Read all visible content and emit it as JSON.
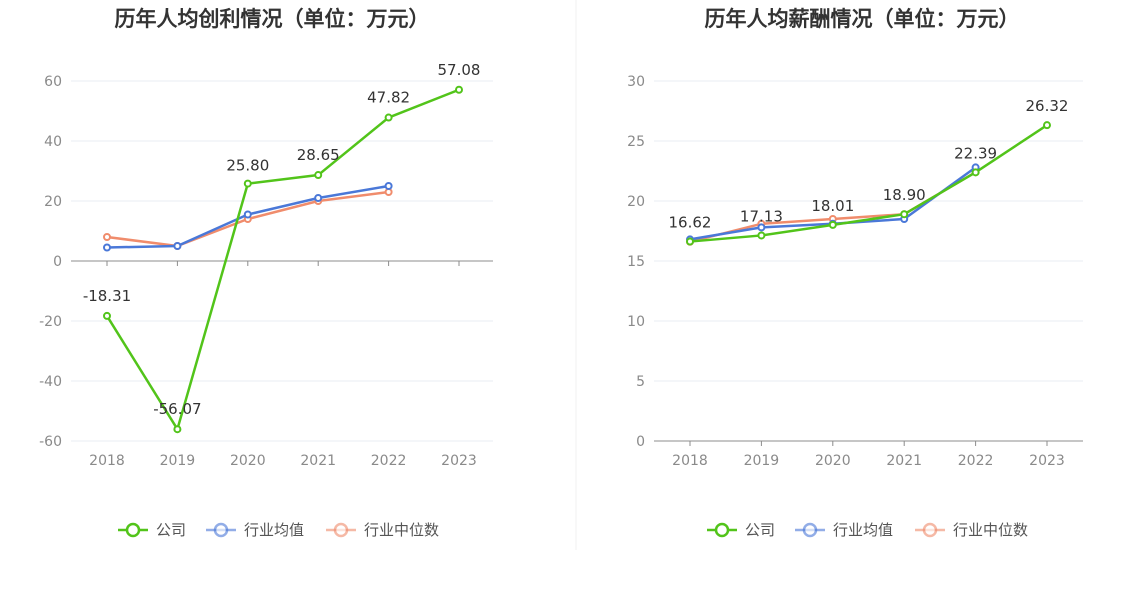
{
  "chart_data": [
    {
      "type": "line",
      "title": "历年人均创利情况（单位：万元）",
      "categories": [
        "2018",
        "2019",
        "2020",
        "2021",
        "2022",
        "2023"
      ],
      "yticks": [
        "60",
        "40",
        "20",
        "0",
        "-20",
        "-40",
        "-60"
      ],
      "ylim": [
        -60,
        60
      ],
      "grid": true,
      "legend_position": "bottom",
      "series": [
        {
          "name": "公司",
          "color": "#52c41a",
          "values": [
            -18.31,
            -56.07,
            25.8,
            28.65,
            47.82,
            57.08
          ],
          "labels": [
            "-18.31",
            "-56.07",
            "25.80",
            "28.65",
            "47.82",
            "57.08"
          ]
        },
        {
          "name": "行业均值",
          "color": "#4a78d8",
          "values": [
            4.5,
            5.0,
            15.5,
            21.0,
            25.0,
            null
          ]
        },
        {
          "name": "行业中位数",
          "color": "#f08c6c",
          "values": [
            8.0,
            5.0,
            14.0,
            20.0,
            23.0,
            null
          ]
        }
      ]
    },
    {
      "type": "line",
      "title": "历年人均薪酬情况（单位：万元）",
      "categories": [
        "2018",
        "2019",
        "2020",
        "2021",
        "2022",
        "2023"
      ],
      "yticks": [
        "30",
        "25",
        "20",
        "15",
        "10",
        "5",
        "0"
      ],
      "ylim": [
        0,
        30
      ],
      "grid": true,
      "legend_position": "bottom",
      "series": [
        {
          "name": "公司",
          "color": "#52c41a",
          "values": [
            16.62,
            17.13,
            18.01,
            18.9,
            22.39,
            26.32
          ],
          "labels": [
            "16.62",
            "17.13",
            "18.01",
            "18.90",
            "22.39",
            "26.32"
          ]
        },
        {
          "name": "行业均值",
          "color": "#4a78d8",
          "values": [
            16.8,
            17.8,
            18.1,
            18.5,
            22.8,
            null
          ]
        },
        {
          "name": "行业中位数",
          "color": "#f08c6c",
          "values": [
            16.6,
            18.1,
            18.5,
            18.9,
            22.4,
            null
          ]
        }
      ]
    }
  ]
}
